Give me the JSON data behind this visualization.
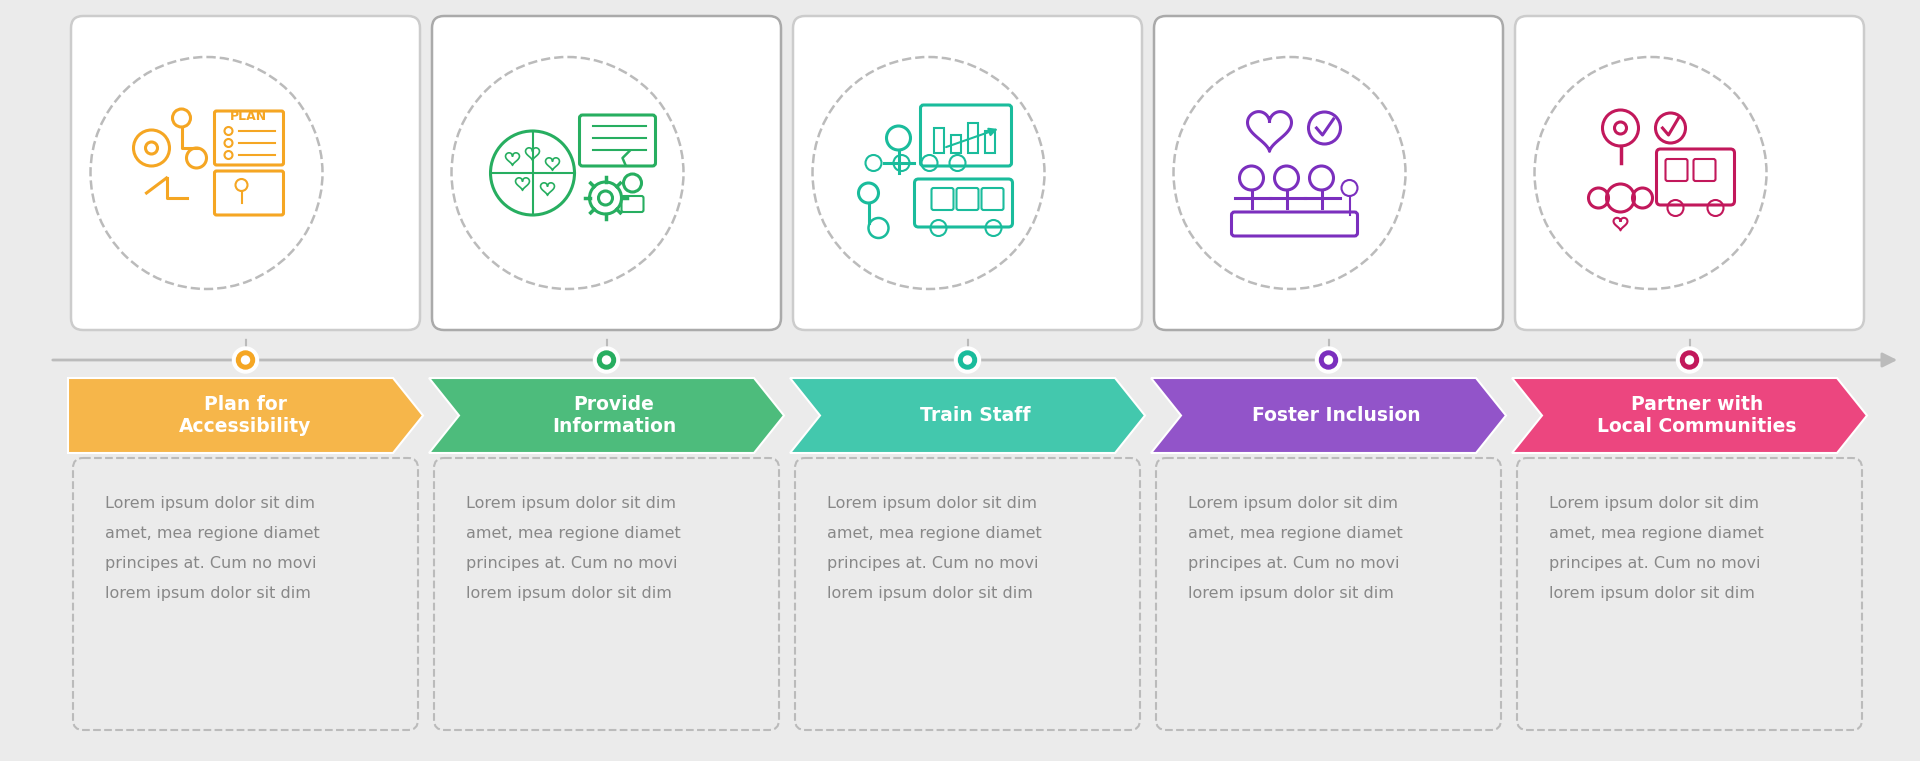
{
  "background_color": "#ebebeb",
  "steps": [
    {
      "title": "Plan for\nAccessibility",
      "color": "#F5A623",
      "dot_color": "#F5A623",
      "icon_color": "#F5A623",
      "card_border": "#cccccc"
    },
    {
      "title": "Provide\nInformation",
      "color": "#27AE60",
      "dot_color": "#27AE60",
      "icon_color": "#27AE60",
      "card_border": "#aaaaaa"
    },
    {
      "title": "Train Staff",
      "color": "#1ABC9C",
      "dot_color": "#1ABC9C",
      "icon_color": "#1ABC9C",
      "card_border": "#cccccc"
    },
    {
      "title": "Foster Inclusion",
      "color": "#7B2FBE",
      "dot_color": "#7B2FBE",
      "icon_color": "#7B2FBE",
      "card_border": "#aaaaaa"
    },
    {
      "title": "Partner with\nLocal Communities",
      "color": "#E91E63",
      "dot_color": "#C2185B",
      "icon_color": "#C2185B",
      "card_border": "#cccccc"
    }
  ],
  "lorem_lines": [
    "Lorem ipsum dolor sit dim",
    "amet, mea regione diamet",
    "principes at. Cum no movi",
    "lorem ipsum dolor sit dim"
  ],
  "timeline_color": "#bbbbbb",
  "arrow_end_color": "#aaaaaa"
}
